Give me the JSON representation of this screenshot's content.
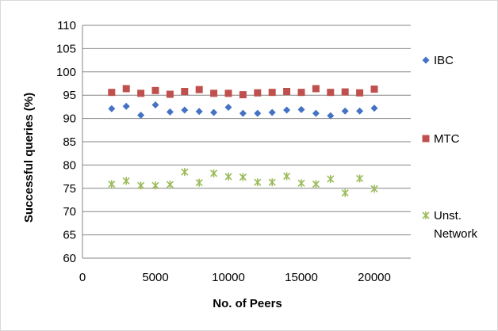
{
  "chart_data": {
    "type": "scatter",
    "title": "",
    "xlabel": "No. of Peers",
    "ylabel": "Successful queries (%)",
    "xlim": [
      0,
      22500
    ],
    "ylim": [
      60,
      110
    ],
    "x_ticks": [
      "0",
      "5000",
      "10000",
      "15000",
      "20000"
    ],
    "y_ticks": [
      "60",
      "65",
      "70",
      "75",
      "80",
      "85",
      "90",
      "95",
      "100",
      "105",
      "110"
    ],
    "grid": "horizontal",
    "legend_position": "right",
    "x": [
      2000,
      3000,
      4000,
      5000,
      6000,
      7000,
      8000,
      9000,
      10000,
      11000,
      12000,
      13000,
      14000,
      15000,
      16000,
      17000,
      18000,
      19000,
      20000
    ],
    "series": [
      {
        "name": "IBC",
        "marker": "diamond",
        "color": "#4472c4",
        "values": [
          92.1,
          92.6,
          90.7,
          92.9,
          91.4,
          91.8,
          91.5,
          91.3,
          92.4,
          91.1,
          91.1,
          91.3,
          91.8,
          91.9,
          91.1,
          90.6,
          91.6,
          91.6,
          92.2
        ]
      },
      {
        "name": "MTC",
        "marker": "square",
        "color": "#c0504d",
        "values": [
          95.6,
          96.4,
          95.4,
          96.0,
          95.2,
          95.8,
          96.2,
          95.4,
          95.4,
          95.1,
          95.5,
          95.6,
          95.8,
          95.6,
          96.4,
          95.6,
          95.7,
          95.5,
          96.3
        ]
      },
      {
        "name": "Unst. Network",
        "marker": "asterisk",
        "color": "#9bbb59",
        "values": [
          75.9,
          76.6,
          75.6,
          75.6,
          75.8,
          78.5,
          76.2,
          78.2,
          77.5,
          77.4,
          76.3,
          76.3,
          77.6,
          76.1,
          75.9,
          77.0,
          74.0,
          77.1,
          74.9
        ]
      }
    ]
  }
}
